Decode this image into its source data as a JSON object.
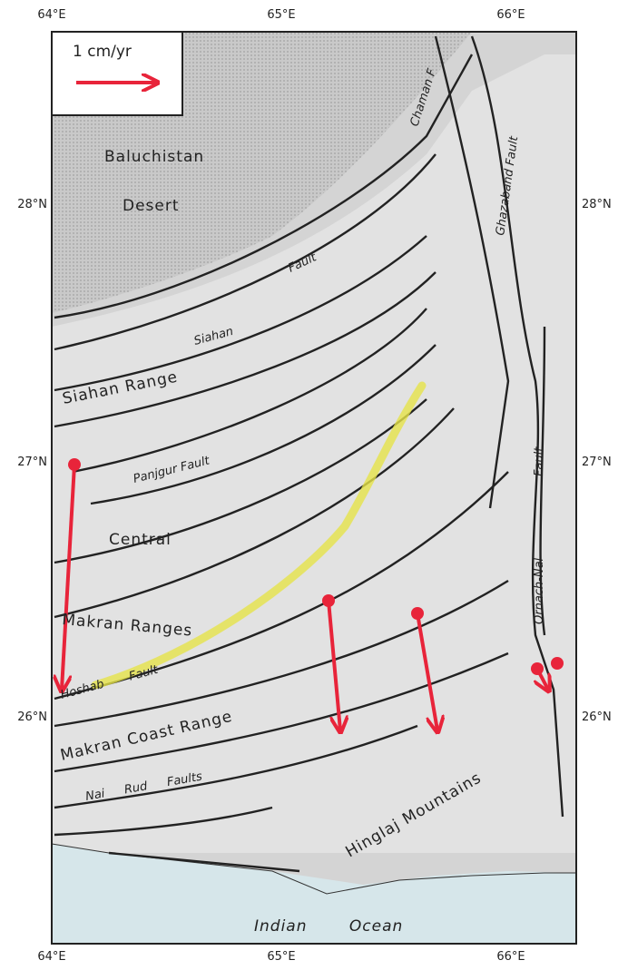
{
  "map": {
    "lon_labels": [
      "64°E",
      "65°E",
      "66°E"
    ],
    "lat_labels": [
      "28°N",
      "27°N",
      "26°N"
    ],
    "scale_label": "1 cm/yr",
    "places": [
      "Baluchistan",
      "Desert",
      "Siahan Range",
      "Central",
      "Makran Ranges",
      "Makran Coast Range",
      "Hinglaj Mountains",
      "Indian Ocean"
    ],
    "faults": [
      "Chaman F",
      "Ghazaband Fault",
      "Siahan",
      "Fault",
      "Panjgur Fault",
      "Hoshab Fault",
      "Nai Rud Faults",
      "Ornach-Nal",
      "Fault"
    ]
  }
}
